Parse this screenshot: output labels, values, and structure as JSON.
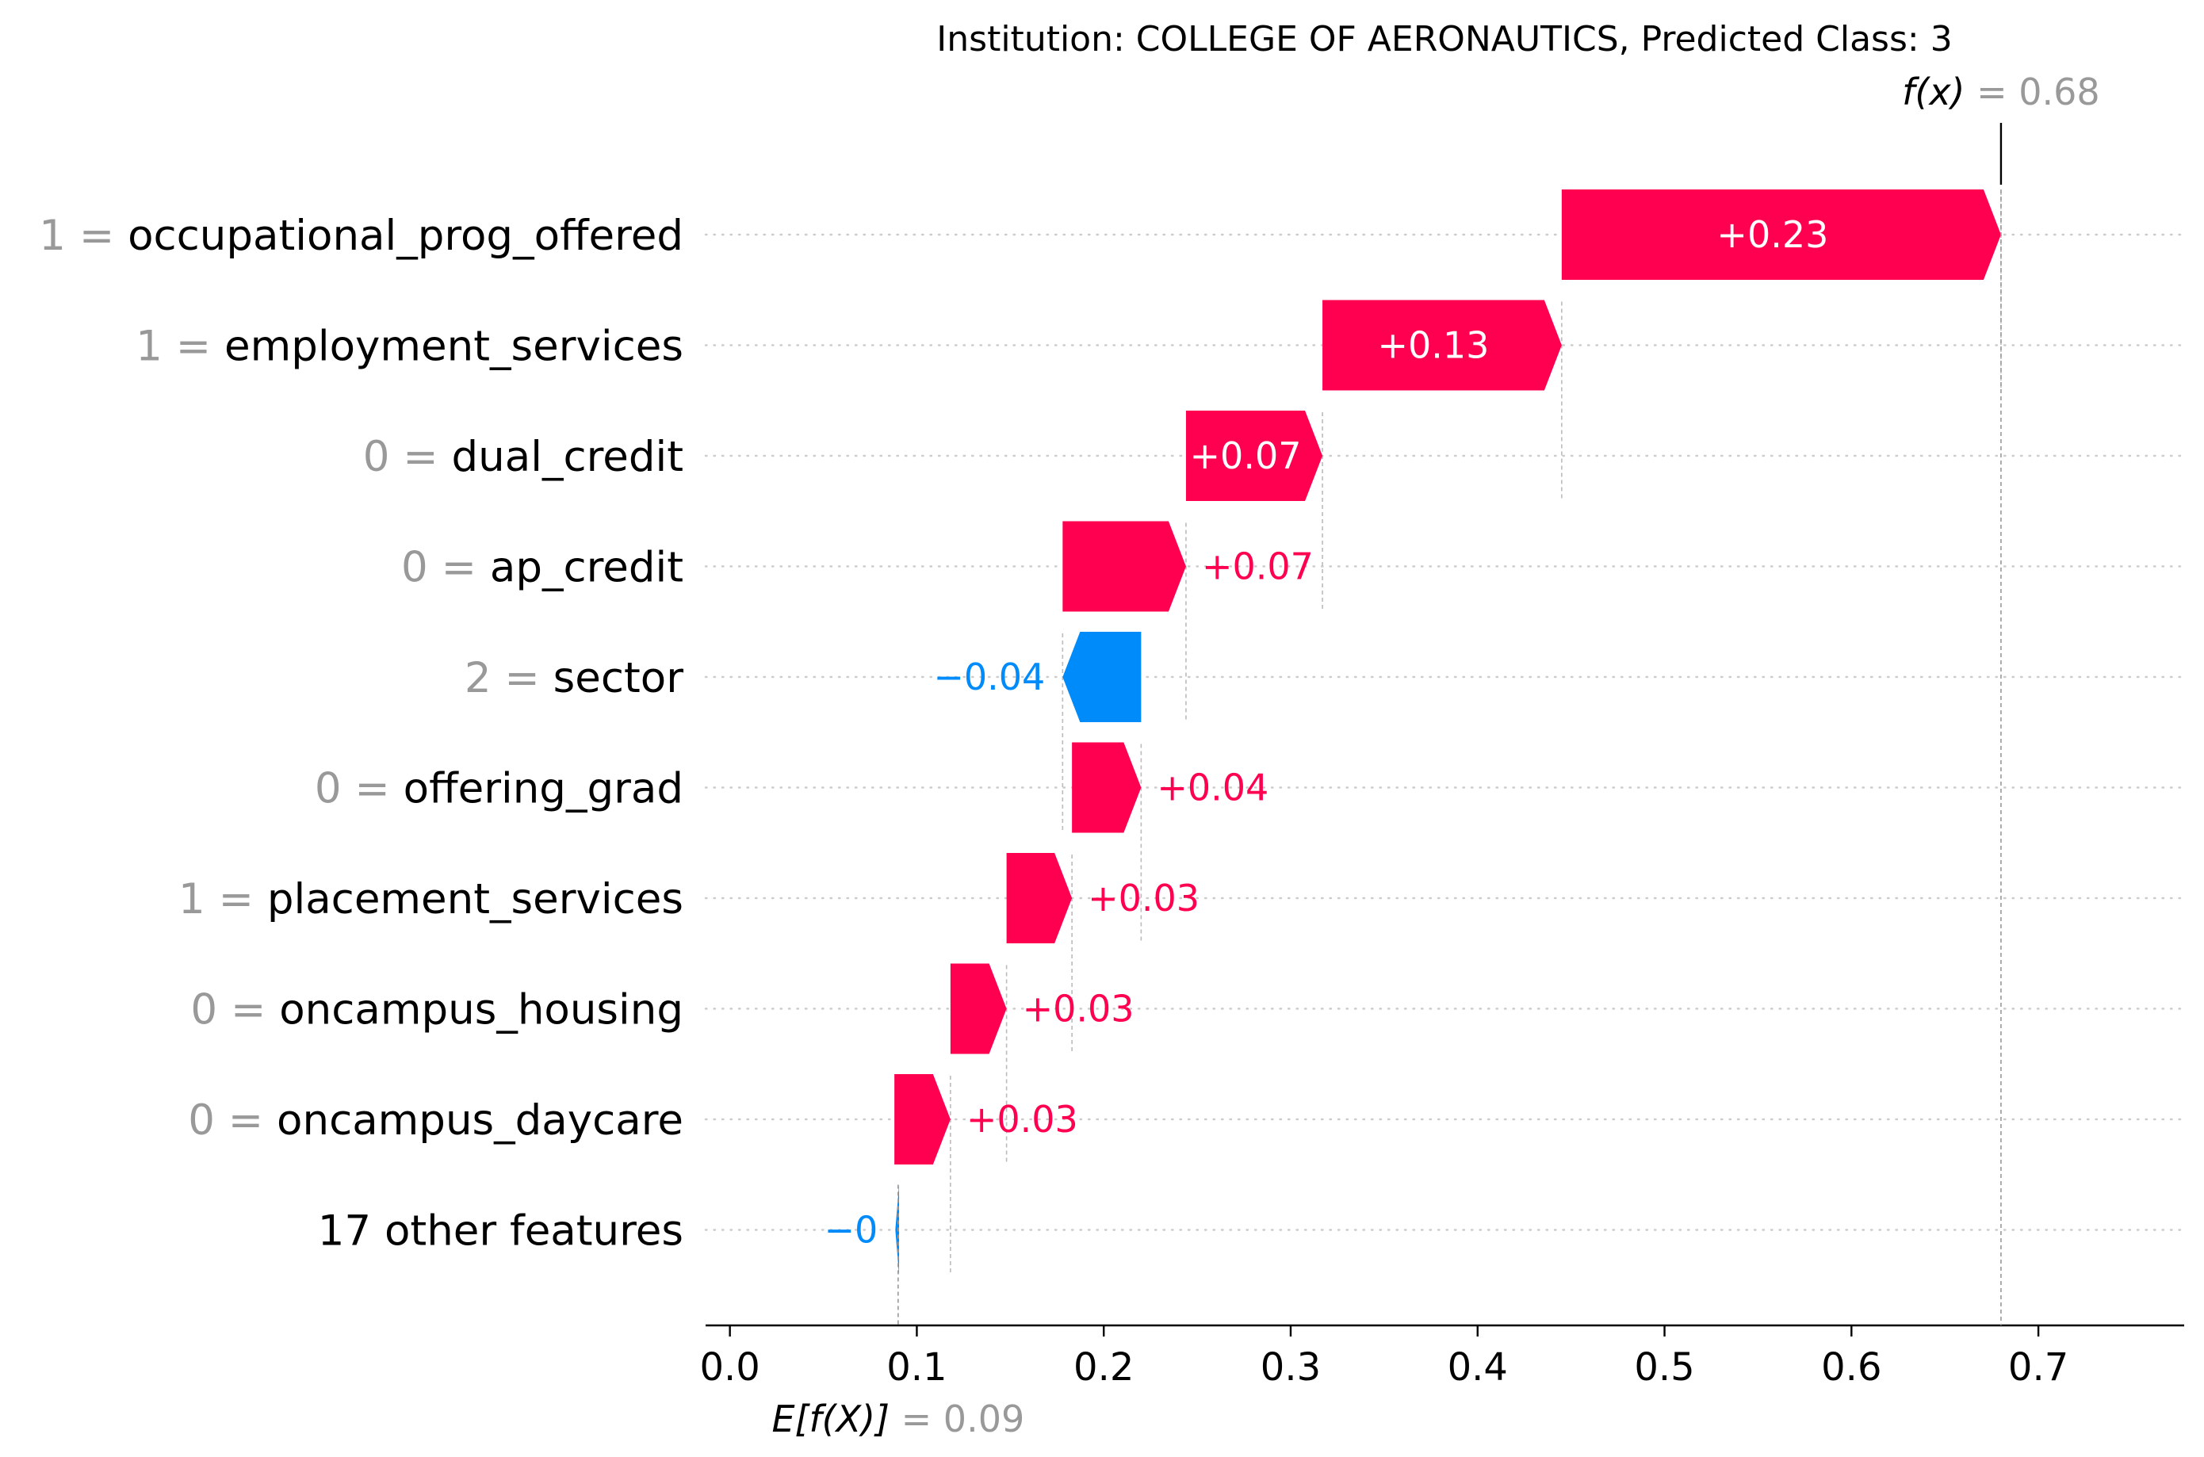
{
  "chart_data": {
    "type": "waterfall",
    "title": "Institution: COLLEGE OF AERONAUTICS, Predicted Class: 3",
    "base_value": 0.09,
    "base_label_prefix": "E[f(X)]",
    "base_label_value": "= 0.09",
    "output_value": 0.68,
    "output_label_prefix": "f(x)",
    "output_label_value": "= 0.68",
    "xlim": [
      -0.013,
      0.778
    ],
    "x_ticks": [
      {
        "value": 0.0,
        "label": "0.0"
      },
      {
        "value": 0.1,
        "label": "0.1"
      },
      {
        "value": 0.2,
        "label": "0.2"
      },
      {
        "value": 0.3,
        "label": "0.3"
      },
      {
        "value": 0.4,
        "label": "0.4"
      },
      {
        "value": 0.5,
        "label": "0.5"
      },
      {
        "value": 0.6,
        "label": "0.6"
      },
      {
        "value": 0.7,
        "label": "0.7"
      }
    ],
    "positive_color": "#ff0051",
    "negative_color": "#008bfb",
    "features": [
      {
        "value_label": "1 =",
        "name": "occupational_prog_offered",
        "start": 0.445,
        "end": 0.68,
        "label": "+0.23"
      },
      {
        "value_label": "1 =",
        "name": "employment_services",
        "start": 0.317,
        "end": 0.445,
        "label": "+0.13"
      },
      {
        "value_label": "0 =",
        "name": "dual_credit",
        "start": 0.244,
        "end": 0.317,
        "label": "+0.07"
      },
      {
        "value_label": "0 =",
        "name": "ap_credit",
        "start": 0.178,
        "end": 0.244,
        "label": "+0.07"
      },
      {
        "value_label": "2 =",
        "name": "sector",
        "start": 0.22,
        "end": 0.178,
        "label": "−0.04"
      },
      {
        "value_label": "0 =",
        "name": "offering_grad",
        "start": 0.183,
        "end": 0.22,
        "label": "+0.04"
      },
      {
        "value_label": "1 =",
        "name": "placement_services",
        "start": 0.148,
        "end": 0.183,
        "label": "+0.03"
      },
      {
        "value_label": "0 =",
        "name": "oncampus_housing",
        "start": 0.118,
        "end": 0.148,
        "label": "+0.03"
      },
      {
        "value_label": "0 =",
        "name": "oncampus_daycare",
        "start": 0.088,
        "end": 0.118,
        "label": "+0.03"
      },
      {
        "value_label": "",
        "name": "17 other features",
        "start": 0.0905,
        "end": 0.0885,
        "label": "−0"
      }
    ]
  }
}
